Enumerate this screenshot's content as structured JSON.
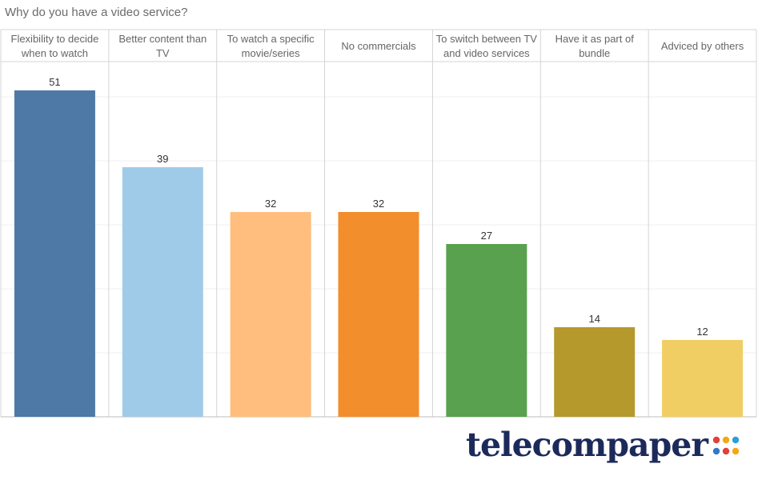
{
  "title": "Why do you have a video service?",
  "chart_data": {
    "type": "bar",
    "title": "Why do you have a video service?",
    "categories": [
      [
        "Flexibility to decide",
        "when to watch"
      ],
      [
        "Better content than",
        "TV"
      ],
      [
        "To watch a specific",
        "movie/series"
      ],
      [
        "No commercials"
      ],
      [
        "To switch between TV",
        "and video services"
      ],
      [
        "Have it as part of",
        "bundle"
      ],
      [
        "Adviced by others"
      ]
    ],
    "values": [
      51,
      39,
      32,
      32,
      27,
      14,
      12
    ],
    "colors": [
      "#4e79a7",
      "#a0cbe8",
      "#ffbe7d",
      "#f28e2b",
      "#59a14f",
      "#b6992d",
      "#f1ce63"
    ],
    "ylim": [
      0,
      55
    ],
    "grid": true,
    "legend": "none"
  },
  "logo": {
    "text": "telecompaper",
    "dot_colors": [
      "#e0413a",
      "#f3a712",
      "#2a9fd8",
      "#3478c6",
      "#e0413a",
      "#f3a712"
    ]
  }
}
